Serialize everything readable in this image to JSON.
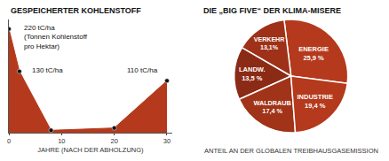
{
  "chart_data": [
    {
      "type": "area",
      "title": "GESPEICHERTER KOHLENSTOFF",
      "xlabel": "JAHRE (NACH DER ABHOLZUNG)",
      "x": [
        0,
        2,
        8,
        20,
        30
      ],
      "series": [
        {
          "type": "area",
          "color": "#b5391c",
          "values": [
            220,
            130,
            5,
            10,
            110
          ]
        },
        {
          "type": "scatter",
          "color": "#111111",
          "values": [
            220,
            130,
            5,
            10,
            110
          ]
        }
      ],
      "xlim": [
        0,
        31
      ],
      "xticks": [
        0,
        10,
        20,
        30
      ],
      "ylim": [
        0,
        240
      ],
      "yticks": [],
      "tick_labels": "x",
      "annotations": [
        {
          "text": "220 tC/ha\n(Tonnen Kohlenstoff\npro Hektar)",
          "x": 0,
          "y": 220
        },
        {
          "text": "130 tC/ha",
          "x": 2,
          "y": 130
        },
        {
          "text": "110 tC/ha",
          "x": 30,
          "y": 110
        }
      ]
    },
    {
      "type": "pie",
      "title": "DIE „BIG FIVE“ DER KLIMA-MISERE",
      "xlabel": "ANTEIL AN DER GLOBALEN TREIBHAUSGASEMISSION",
      "categories": [
        "ENERGIE",
        "VERKEHR",
        "LANDW.",
        "WALDRAUB",
        "INDUSTRIE"
      ],
      "values": [
        25.9,
        13.1,
        13.5,
        17.4,
        19.4
      ],
      "value_labels": [
        "25,9 %",
        "13,1%",
        "13,5 %",
        "17,4 %",
        "19,4 %"
      ],
      "colors": [
        "#b5391c",
        "#9e3118",
        "#8b2a15",
        "#a03318",
        "#b5391c"
      ],
      "data_labels": true
    }
  ]
}
